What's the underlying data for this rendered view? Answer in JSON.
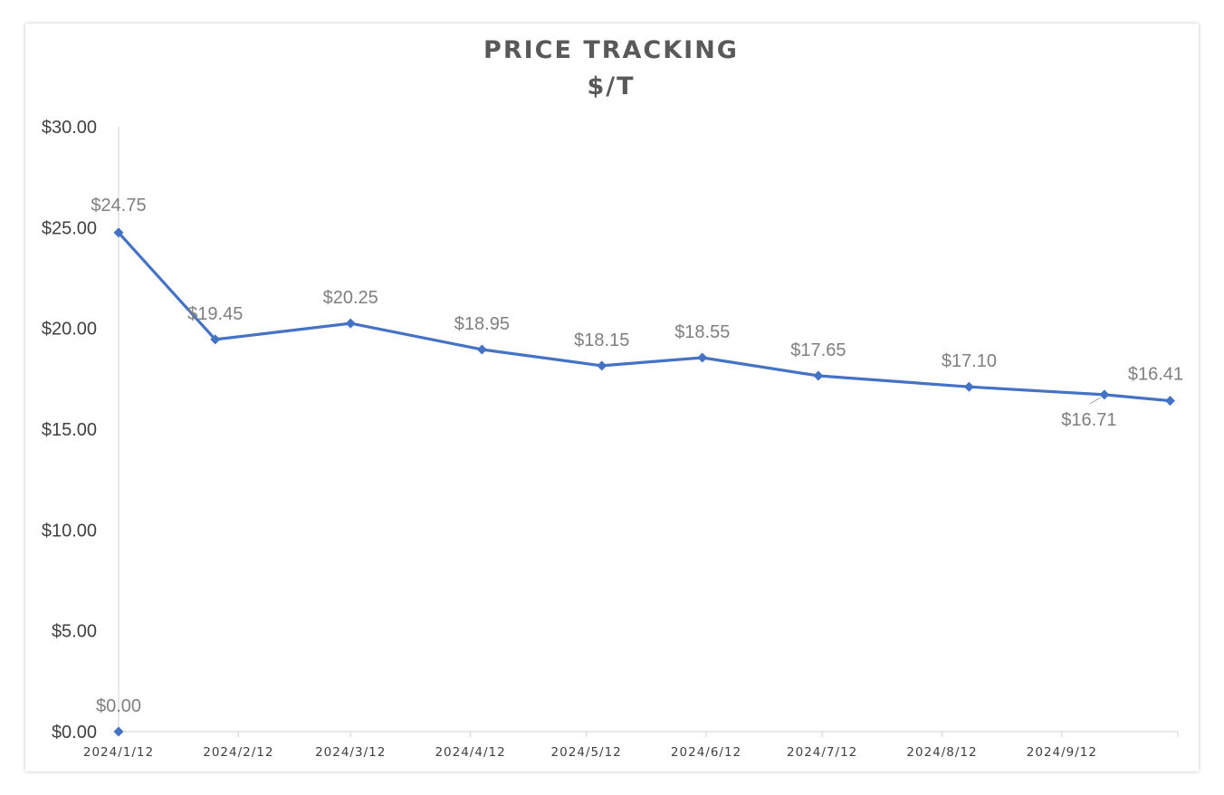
{
  "chart_data": {
    "type": "line",
    "title": "PRICE TRACKING",
    "subtitle": "$/T",
    "xlabel": "",
    "ylabel": "",
    "ylim": [
      0,
      30
    ],
    "y_ticks": [
      "$0.00",
      "$5.00",
      "$10.00",
      "$15.00",
      "$20.00",
      "$25.00",
      "$30.00"
    ],
    "x_tick_labels": [
      "2024/1/12",
      "2024/2/12",
      "2024/3/12",
      "2024/4/12",
      "2024/5/12",
      "2024/6/12",
      "2024/7/12",
      "2024/8/12",
      "2024/9/12"
    ],
    "x_range": [
      "2024-01-12",
      "2024-10-12"
    ],
    "grid": false,
    "legend": "none",
    "series_color": "#4472C4",
    "points": [
      {
        "x": "2024-01-12",
        "y": 0.0,
        "label": "$0.00"
      },
      {
        "x": "2024-01-12",
        "y": 24.75,
        "label": "$24.75"
      },
      {
        "x": "2024-02-06",
        "y": 19.45,
        "label": "$19.45"
      },
      {
        "x": "2024-03-12",
        "y": 20.25,
        "label": "$20.25"
      },
      {
        "x": "2024-04-15",
        "y": 18.95,
        "label": "$18.95"
      },
      {
        "x": "2024-05-16",
        "y": 18.15,
        "label": "$18.15"
      },
      {
        "x": "2024-06-11",
        "y": 18.55,
        "label": "$18.55"
      },
      {
        "x": "2024-07-11",
        "y": 17.65,
        "label": "$17.65"
      },
      {
        "x": "2024-08-19",
        "y": 17.1,
        "label": "$17.10"
      },
      {
        "x": "2024-09-23",
        "y": 16.71,
        "label": "$16.71"
      },
      {
        "x": "2024-10-10",
        "y": 16.41,
        "label": "$16.41"
      }
    ]
  }
}
